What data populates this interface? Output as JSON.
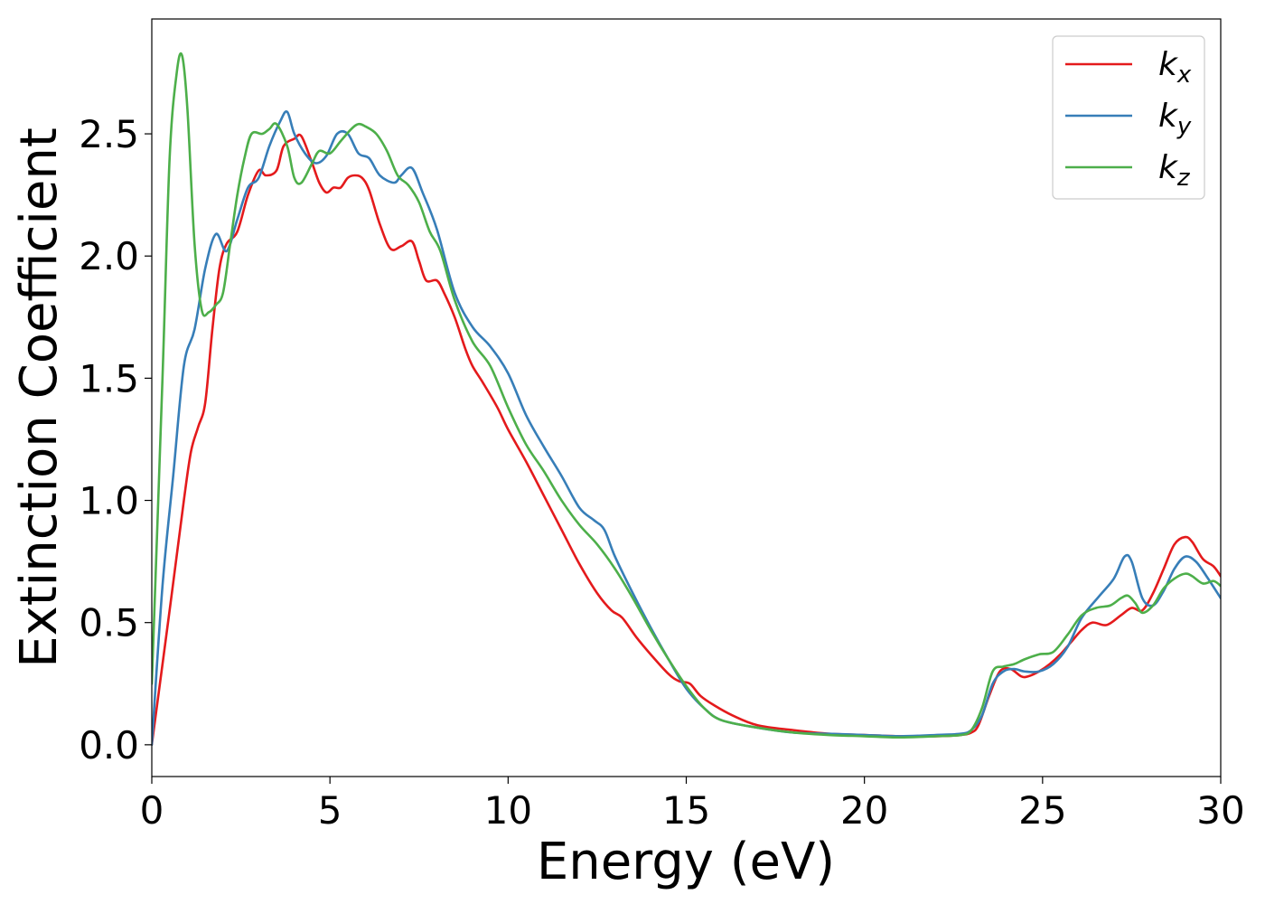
{
  "chart_data": {
    "type": "line",
    "title": "",
    "xlabel": "Energy (eV)",
    "ylabel": "Extinction Coefficient",
    "xlim": [
      0,
      30
    ],
    "ylim": [
      -0.13,
      2.97
    ],
    "xticks": [
      0,
      5,
      10,
      15,
      20,
      25,
      30
    ],
    "xtick_labels": [
      "0",
      "5",
      "10",
      "15",
      "20",
      "25",
      "30"
    ],
    "yticks": [
      0.0,
      0.5,
      1.0,
      1.5,
      2.0,
      2.5
    ],
    "ytick_labels": [
      "0.0",
      "0.5",
      "1.0",
      "1.5",
      "2.0",
      "2.5"
    ],
    "grid": false,
    "legend_position": "top-right",
    "series": [
      {
        "name": "k_x",
        "label_base": "k",
        "label_sub": "x",
        "color": "#e41a1c",
        "x": [
          0,
          0.5,
          0.9,
          1.1,
          1.3,
          1.5,
          1.7,
          1.9,
          2.1,
          2.4,
          2.7,
          3.0,
          3.2,
          3.5,
          3.7,
          4.0,
          4.2,
          4.5,
          4.7,
          4.9,
          5.1,
          5.3,
          5.5,
          5.7,
          5.9,
          6.1,
          6.4,
          6.7,
          7.0,
          7.3,
          7.5,
          7.7,
          8.0,
          8.2,
          8.5,
          8.8,
          9.0,
          9.3,
          9.7,
          10.0,
          10.5,
          11.0,
          11.5,
          12.0,
          12.5,
          12.9,
          13.2,
          13.6,
          14.0,
          14.5,
          14.8,
          15.1,
          15.4,
          15.8,
          16.3,
          17.0,
          18.0,
          19.0,
          20.0,
          21.0,
          22.0,
          22.7,
          23.0,
          23.2,
          23.5,
          23.8,
          24.1,
          24.4,
          24.6,
          24.9,
          25.2,
          25.5,
          25.8,
          26.1,
          26.4,
          26.8,
          27.2,
          27.5,
          27.8,
          28.1,
          28.4,
          28.7,
          29.0,
          29.2,
          29.5,
          29.8,
          30.0
        ],
        "y": [
          0.0,
          0.55,
          1.0,
          1.2,
          1.3,
          1.4,
          1.7,
          1.95,
          2.05,
          2.1,
          2.25,
          2.35,
          2.33,
          2.35,
          2.45,
          2.48,
          2.49,
          2.38,
          2.3,
          2.26,
          2.28,
          2.28,
          2.32,
          2.33,
          2.32,
          2.27,
          2.13,
          2.03,
          2.04,
          2.06,
          1.98,
          1.9,
          1.9,
          1.85,
          1.75,
          1.62,
          1.55,
          1.48,
          1.38,
          1.29,
          1.16,
          1.02,
          0.88,
          0.74,
          0.62,
          0.55,
          0.52,
          0.44,
          0.37,
          0.29,
          0.26,
          0.25,
          0.2,
          0.16,
          0.12,
          0.08,
          0.06,
          0.045,
          0.04,
          0.035,
          0.035,
          0.04,
          0.05,
          0.08,
          0.2,
          0.3,
          0.31,
          0.28,
          0.28,
          0.3,
          0.33,
          0.37,
          0.42,
          0.47,
          0.5,
          0.49,
          0.53,
          0.56,
          0.55,
          0.62,
          0.72,
          0.82,
          0.85,
          0.83,
          0.76,
          0.73,
          0.69
        ]
      },
      {
        "name": "k_y",
        "label_base": "k",
        "label_sub": "y",
        "color": "#377eb8",
        "x": [
          0,
          0.3,
          0.6,
          0.9,
          1.2,
          1.5,
          1.8,
          2.1,
          2.4,
          2.7,
          3.0,
          3.3,
          3.6,
          3.8,
          4.0,
          4.3,
          4.6,
          4.9,
          5.2,
          5.5,
          5.8,
          6.1,
          6.4,
          6.8,
          7.0,
          7.3,
          7.6,
          8.0,
          8.5,
          9.0,
          9.5,
          10.0,
          10.5,
          11.0,
          11.5,
          12.0,
          12.4,
          12.7,
          13.0,
          13.5,
          14.0,
          14.5,
          15.0,
          15.5,
          16.0,
          17.0,
          18.0,
          19.0,
          20.0,
          21.0,
          22.0,
          22.7,
          23.0,
          23.3,
          23.6,
          23.9,
          24.2,
          24.5,
          24.9,
          25.3,
          25.7,
          26.1,
          26.6,
          27.0,
          27.3,
          27.5,
          27.8,
          28.1,
          28.4,
          28.7,
          29.0,
          29.3,
          29.6,
          30.0
        ],
        "y": [
          0.0,
          0.65,
          1.1,
          1.55,
          1.7,
          1.95,
          2.09,
          2.02,
          2.15,
          2.28,
          2.32,
          2.45,
          2.55,
          2.59,
          2.5,
          2.42,
          2.38,
          2.41,
          2.5,
          2.5,
          2.42,
          2.4,
          2.33,
          2.3,
          2.33,
          2.36,
          2.26,
          2.11,
          1.85,
          1.71,
          1.63,
          1.52,
          1.35,
          1.22,
          1.1,
          0.97,
          0.92,
          0.88,
          0.77,
          0.62,
          0.48,
          0.35,
          0.23,
          0.15,
          0.1,
          0.07,
          0.05,
          0.045,
          0.04,
          0.035,
          0.04,
          0.045,
          0.06,
          0.12,
          0.25,
          0.3,
          0.31,
          0.3,
          0.3,
          0.33,
          0.4,
          0.52,
          0.61,
          0.68,
          0.77,
          0.75,
          0.6,
          0.57,
          0.63,
          0.72,
          0.77,
          0.75,
          0.69,
          0.6
        ]
      },
      {
        "name": "k_z",
        "label_base": "k",
        "label_sub": "z",
        "color": "#4daf4a",
        "x": [
          0,
          0.3,
          0.5,
          0.7,
          0.85,
          1.0,
          1.2,
          1.4,
          1.6,
          1.8,
          2.0,
          2.2,
          2.4,
          2.6,
          2.8,
          3.1,
          3.3,
          3.5,
          3.8,
          4.0,
          4.2,
          4.5,
          4.7,
          5.0,
          5.3,
          5.6,
          5.8,
          6.0,
          6.3,
          6.6,
          6.9,
          7.2,
          7.5,
          7.8,
          8.1,
          8.5,
          9.0,
          9.5,
          10.0,
          10.5,
          11.0,
          11.5,
          12.0,
          12.5,
          13.0,
          13.5,
          14.0,
          14.5,
          15.0,
          15.5,
          16.0,
          17.0,
          18.0,
          19.0,
          20.0,
          21.0,
          22.0,
          22.7,
          23.0,
          23.3,
          23.6,
          23.9,
          24.2,
          24.5,
          24.9,
          25.3,
          25.7,
          26.1,
          26.5,
          26.9,
          27.2,
          27.4,
          27.6,
          27.8,
          28.1,
          28.4,
          28.7,
          29.0,
          29.2,
          29.5,
          29.8,
          30.0
        ],
        "y": [
          0.25,
          1.5,
          2.4,
          2.75,
          2.82,
          2.6,
          2.05,
          1.78,
          1.77,
          1.8,
          1.85,
          2.05,
          2.25,
          2.4,
          2.5,
          2.5,
          2.52,
          2.54,
          2.45,
          2.32,
          2.3,
          2.38,
          2.43,
          2.42,
          2.47,
          2.52,
          2.54,
          2.53,
          2.5,
          2.43,
          2.33,
          2.29,
          2.22,
          2.1,
          2.02,
          1.82,
          1.65,
          1.55,
          1.38,
          1.23,
          1.12,
          1.0,
          0.9,
          0.82,
          0.72,
          0.6,
          0.47,
          0.35,
          0.24,
          0.15,
          0.1,
          0.07,
          0.05,
          0.04,
          0.035,
          0.03,
          0.035,
          0.04,
          0.06,
          0.15,
          0.3,
          0.32,
          0.33,
          0.35,
          0.37,
          0.38,
          0.45,
          0.53,
          0.56,
          0.57,
          0.6,
          0.61,
          0.58,
          0.54,
          0.57,
          0.64,
          0.68,
          0.7,
          0.69,
          0.66,
          0.67,
          0.65
        ]
      }
    ]
  }
}
